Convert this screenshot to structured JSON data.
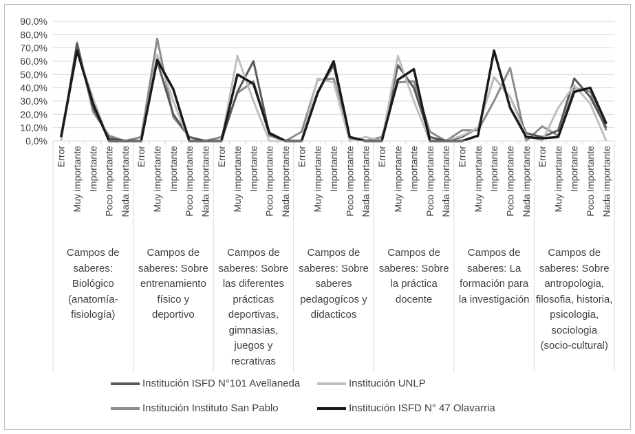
{
  "chart_data": {
    "type": "line",
    "title": "",
    "xlabel": "",
    "ylabel": "",
    "ylim": [
      0,
      90
    ],
    "yticks": [
      "0,0%",
      "10,0%",
      "20,0%",
      "30,0%",
      "40,0%",
      "50,0%",
      "60,0%",
      "70,0%",
      "80,0%",
      "90,0%"
    ],
    "subcategories": [
      "Error",
      "Muy importante",
      "Importante",
      "Poco Importante",
      "Nada importante"
    ],
    "groups": [
      "Campos de saberes: Biológico (anatomía-fisiología)",
      "Campos de saberes: Sobre entrenamiento físico y deportivo",
      "Campos de saberes: Sobre las diferentes prácticas deportivas, gimnasias, juegos y recrativas",
      "Campos de saberes: Sobre saberes pedagogícos y didacticos",
      "Campos de saberes: Sobre la práctica docente",
      "Campos de saberes: La formación para la investigación",
      "Campos de saberes: Sobre antropologia, filosofia, historia, psicologia, sociologia (socio-cultural)"
    ],
    "series": [
      {
        "name": "Institución ISFD N°101 Avellaneda",
        "color": "#595959",
        "values": [
          0,
          73,
          25,
          2,
          0,
          0,
          60,
          20,
          3,
          0,
          0,
          37,
          60,
          5,
          0,
          0,
          37,
          57,
          3,
          0,
          0,
          57,
          40,
          3,
          0,
          3,
          10,
          48,
          33,
          6,
          3,
          8,
          47,
          33,
          10
        ]
      },
      {
        "name": "Institución UNLP",
        "color": "#bfbfbf",
        "values": [
          0,
          68,
          32,
          0,
          0,
          0,
          65,
          30,
          0,
          0,
          0,
          64,
          30,
          0,
          0,
          0,
          47,
          44,
          0,
          3,
          0,
          64,
          30,
          0,
          0,
          4,
          10,
          48,
          33,
          4,
          0,
          25,
          42,
          28,
          0
        ]
      },
      {
        "name": "Institución Instituto San Pablo",
        "color": "#8c8c8c",
        "values": [
          0,
          74,
          22,
          4,
          0,
          3,
          77,
          18,
          3,
          0,
          3,
          36,
          45,
          4,
          0,
          7,
          46,
          47,
          2,
          0,
          3,
          44,
          45,
          7,
          0,
          8,
          8,
          30,
          55,
          0,
          11,
          4,
          40,
          37,
          8
        ]
      },
      {
        "name": "Institución ISFD N° 47 Olavarria",
        "color": "#1a1a1a",
        "values": [
          3,
          68,
          28,
          0,
          0,
          0,
          61,
          39,
          0,
          0,
          0,
          50,
          43,
          6,
          0,
          0,
          36,
          60,
          3,
          0,
          0,
          46,
          54,
          0,
          0,
          0,
          4,
          68,
          25,
          3,
          2,
          3,
          37,
          40,
          13
        ]
      }
    ],
    "legend_position": "bottom",
    "grid": true
  }
}
